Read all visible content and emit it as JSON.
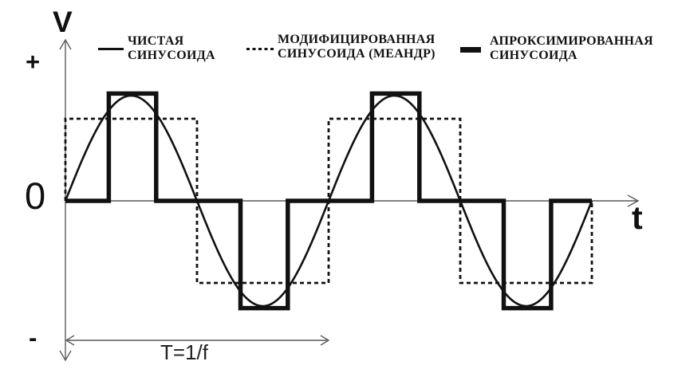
{
  "axis": {
    "v_label": "V",
    "t_label": "t",
    "plus": "+",
    "zero": "0",
    "minus": "-",
    "period_label": "T=1/f"
  },
  "legend": {
    "items": [
      {
        "label": "ЧИСТАЯ\nСИНУСОИДА",
        "swatch": "solid-thin"
      },
      {
        "label": "МОДИФИЦИРОВАННАЯ\nСИНУСОИДА (МЕАНДР)",
        "swatch": "dotted"
      },
      {
        "label": "АПРОКСИМИРОВАННАЯ\nСИНУСОИДА",
        "swatch": "solid-thick"
      }
    ]
  },
  "chart_data": {
    "type": "line",
    "title": "",
    "xlabel": "t",
    "ylabel": "V",
    "x_domain_periods": 2,
    "ylim": [
      -1.25,
      1.25
    ],
    "grid": false,
    "legend_position": "top",
    "annotations": [
      {
        "text": "T=1/f",
        "kind": "period-dimension",
        "from_period": 0,
        "to_period": 1
      }
    ],
    "series": [
      {
        "name": "ЧИСТАЯ СИНУСОИДА",
        "kind": "sine",
        "amplitude": 1.0,
        "stroke": "solid-thin"
      },
      {
        "name": "МОДИФИЦИРОВАННАЯ СИНУСОИДА (МЕАНДР)",
        "kind": "square",
        "amplitude": 0.78,
        "duty": 0.5,
        "stroke": "dotted"
      },
      {
        "name": "АПРОКСИМИРОВАННАЯ СИНУСОИДА",
        "kind": "pulse",
        "amplitude": 1.02,
        "pulse_windows": [
          [
            0.165,
            0.345
          ],
          [
            0.665,
            0.845
          ]
        ],
        "stroke": "solid-thick"
      }
    ]
  },
  "colors": {
    "ink": "#111111",
    "axis": "#5a5a5a",
    "background": "#ffffff"
  }
}
